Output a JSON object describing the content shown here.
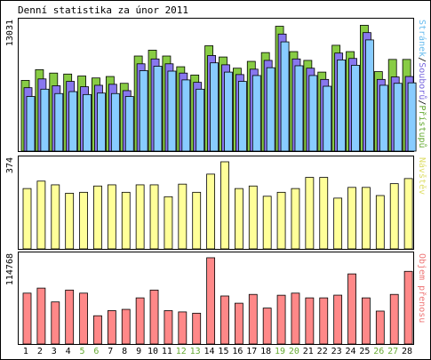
{
  "title": "Denní statistika za únor 2011",
  "colors": {
    "page_bg": "#ffffff",
    "panel_bg": "#ffffff",
    "frame": "#000000",
    "tick_text": "#000000",
    "weekend_text": "#66aa33",
    "hits": "#88cc44",
    "files": "#8877ee",
    "pages": "#88ccff",
    "visits": "#ffff99",
    "kbytes": "#ff8888",
    "label_hits": "#66aa33",
    "label_files": "#7766dd",
    "label_sep": "#000000",
    "label_pages": "#66bbee",
    "label_visits": "#dddd66",
    "label_kbytes": "#ee7777"
  },
  "chart_data": [
    {
      "type": "bar",
      "panel": "traffic",
      "ymax_label": "13031",
      "ylim": [
        0,
        13031
      ],
      "right_label": [
        {
          "text": "Stránek",
          "color_key": "label_pages"
        },
        {
          "text": "/",
          "color_key": "label_sep"
        },
        {
          "text": "Souborů",
          "color_key": "label_files"
        },
        {
          "text": "/",
          "color_key": "label_sep"
        },
        {
          "text": "Přístupů",
          "color_key": "label_hits"
        }
      ],
      "categories": [
        "1",
        "2",
        "3",
        "4",
        "5",
        "6",
        "7",
        "8",
        "9",
        "10",
        "11",
        "12",
        "13",
        "14",
        "15",
        "16",
        "17",
        "18",
        "19",
        "20",
        "21",
        "22",
        "23",
        "24",
        "25",
        "26",
        "27",
        "28"
      ],
      "weekend_days": [
        "5",
        "6",
        "12",
        "13",
        "19",
        "20",
        "26",
        "27"
      ],
      "series": [
        {
          "name": "Přístupů",
          "color_key": "hits",
          "values": [
            7250,
            8350,
            8000,
            7900,
            7700,
            7500,
            7650,
            6950,
            9750,
            10350,
            9750,
            8650,
            7800,
            10800,
            9650,
            8500,
            9200,
            10100,
            12800,
            10200,
            9300,
            8100,
            10850,
            10200,
            12900,
            8150,
            9400,
            9400
          ]
        },
        {
          "name": "Souborů",
          "color_key": "files",
          "values": [
            6500,
            7400,
            6700,
            7150,
            6600,
            6750,
            6850,
            6200,
            8950,
            9450,
            8950,
            8000,
            7050,
            9800,
            8850,
            7850,
            8400,
            9300,
            12000,
            9450,
            8500,
            7350,
            10050,
            9500,
            12150,
            7350,
            7600,
            7650
          ]
        },
        {
          "name": "Stránek",
          "color_key": "pages",
          "values": [
            5600,
            6350,
            5900,
            6100,
            5800,
            5950,
            5900,
            5600,
            8250,
            8700,
            8200,
            7300,
            6350,
            9050,
            8100,
            7150,
            7750,
            8550,
            11200,
            8750,
            7750,
            6650,
            9350,
            8800,
            11400,
            6750,
            6950,
            7000
          ]
        }
      ]
    },
    {
      "type": "bar",
      "panel": "visits",
      "ymax_label": "374",
      "ylim": [
        0,
        374
      ],
      "right_label": [
        {
          "text": "Návštěv",
          "color_key": "label_visits"
        }
      ],
      "categories": [
        "1",
        "2",
        "3",
        "4",
        "5",
        "6",
        "7",
        "8",
        "9",
        "10",
        "11",
        "12",
        "13",
        "14",
        "15",
        "16",
        "17",
        "18",
        "19",
        "20",
        "21",
        "22",
        "23",
        "24",
        "25",
        "26",
        "27",
        "28"
      ],
      "series": [
        {
          "name": "Návštěv",
          "color_key": "visits",
          "values": [
            259,
            291,
            275,
            239,
            243,
            270,
            275,
            243,
            275,
            275,
            224,
            278,
            243,
            321,
            374,
            259,
            270,
            226,
            243,
            259,
            307,
            307,
            218,
            264,
            264,
            229,
            280,
            302
          ]
        }
      ]
    },
    {
      "type": "bar",
      "panel": "kbytes",
      "ymax_label": "114768",
      "ylim": [
        0,
        114768
      ],
      "right_label": [
        {
          "text": "Objem přenosu",
          "color_key": "label_kbytes"
        }
      ],
      "categories": [
        "1",
        "2",
        "3",
        "4",
        "5",
        "6",
        "7",
        "8",
        "9",
        "10",
        "11",
        "12",
        "13",
        "14",
        "15",
        "16",
        "17",
        "18",
        "19",
        "20",
        "21",
        "22",
        "23",
        "24",
        "25",
        "26",
        "27",
        "28"
      ],
      "series": [
        {
          "name": "Objem přenosu",
          "color_key": "kbytes",
          "values": [
            67700,
            74400,
            56000,
            71800,
            67700,
            37600,
            44400,
            46100,
            61400,
            71800,
            44400,
            42700,
            41000,
            114800,
            63900,
            54300,
            66000,
            47800,
            64900,
            67700,
            61400,
            61400,
            65000,
            93300,
            61400,
            43800,
            66000,
            96700
          ]
        }
      ]
    }
  ]
}
